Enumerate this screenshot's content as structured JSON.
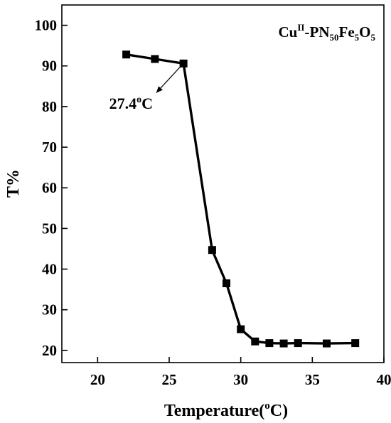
{
  "chart_data": {
    "type": "line",
    "title": "",
    "xlabel": "Temperature",
    "xlabel_unit_sup": "o",
    "xlabel_unit_close": "C)",
    "ylabel": "T%",
    "xlim": [
      17.5,
      40
    ],
    "ylim": [
      17,
      105
    ],
    "xticks": [
      20,
      25,
      30,
      35,
      40
    ],
    "yticks": [
      20,
      30,
      40,
      50,
      60,
      70,
      80,
      90,
      100
    ],
    "grid": false,
    "series": [
      {
        "name": "",
        "marker": "square",
        "color": "#000000",
        "x": [
          22,
          24,
          26,
          28,
          29,
          30,
          31,
          32,
          33,
          34,
          36,
          38
        ],
        "y": [
          92.8,
          91.7,
          90.6,
          44.7,
          36.5,
          25.2,
          22.2,
          21.8,
          21.7,
          21.8,
          21.7,
          21.8
        ]
      }
    ],
    "legend": {
      "position": "top-right",
      "parts": [
        "Cu",
        "II",
        "-PN",
        "50",
        "Fe",
        "5",
        "O",
        "5"
      ]
    },
    "annotation": {
      "text": "27.4",
      "sup": "o",
      "suffix": "C",
      "arrow_to": {
        "x": 26,
        "y": 90.6
      },
      "arrow_from": {
        "x": 24.1,
        "y": 83.4
      },
      "label_at": {
        "x": 21.8,
        "y": 79.5
      }
    }
  }
}
